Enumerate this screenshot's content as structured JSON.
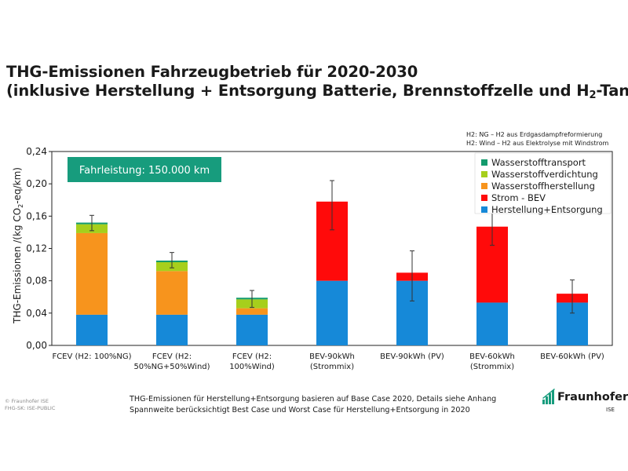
{
  "title": {
    "line1": "THG-Emissionen Fahrzeugbetrieb für 2020-2030",
    "line2_pre": "(inklusive Herstellung + Entsorgung Batterie, Brennstoffzelle und H",
    "line2_sub": "2",
    "line2_post": "-Tank)"
  },
  "h2_notes": [
    "H2: NG – H2 aus Erdgasdampfreformierung",
    "H2: Wind – H2 aus Elektrolyse mit Windstrom"
  ],
  "badge": "Fahrleistung: 150.000 km",
  "footer": {
    "copyright": "© Fraunhofer ISE",
    "classification": "FHG-SK: ISE-PUBLIC",
    "note1": "THG-Emissionen für Herstellung+Entsorgung basieren auf Base Case 2020, Details siehe Anhang",
    "note2": "Spannweite berücksichtigt Best Case und Worst Case für Herstellung+Entsorgung in 2020",
    "logo_name": "Fraunhofer",
    "logo_sub": "ISE"
  },
  "colors": {
    "brand": "#179c7d",
    "herstellung": "#1689d8",
    "strom": "#ff0a0a",
    "h2_herstellung": "#f7941d",
    "h2_verdichtung": "#a6cf1c",
    "h2_transport": "#139b6d"
  },
  "chart_data": {
    "type": "bar",
    "stacked": true,
    "title": "",
    "ylabel_parts": [
      "THG-Emissionen /(kg CO",
      "2",
      "-eq/km)"
    ],
    "ylim": [
      0,
      0.24
    ],
    "yticks": [
      "0,00",
      "0,04",
      "0,08",
      "0,12",
      "0,16",
      "0,20",
      "0,24"
    ],
    "grid": false,
    "legend_position": "top-right",
    "categories": [
      [
        "FCEV (H2: 100%NG)"
      ],
      [
        "FCEV (H2:",
        "50%NG+50%Wind)"
      ],
      [
        "FCEV (H2:",
        "100%Wind)"
      ],
      [
        "BEV-90kWh",
        "(Strommix)"
      ],
      [
        "BEV-90kWh (PV)"
      ],
      [
        "BEV-60kWh",
        "(Strommix)"
      ],
      [
        "BEV-60kWh (PV)"
      ]
    ],
    "series": [
      {
        "name": "Herstellung+Entsorgung",
        "color_key": "herstellung",
        "values": [
          0.038,
          0.038,
          0.038,
          0.08,
          0.08,
          0.053,
          0.053
        ]
      },
      {
        "name": "Strom - BEV",
        "color_key": "strom",
        "values": [
          0,
          0,
          0,
          0.098,
          0.01,
          0.094,
          0.011
        ]
      },
      {
        "name": "Wasserstoffherstellung",
        "color_key": "h2_herstellung",
        "values": [
          0.101,
          0.054,
          0.008,
          0,
          0,
          0,
          0
        ]
      },
      {
        "name": "Wasserstoffverdichtung",
        "color_key": "h2_verdichtung",
        "values": [
          0.011,
          0.011,
          0.011,
          0,
          0,
          0,
          0
        ]
      },
      {
        "name": "Wasserstofftransport",
        "color_key": "h2_transport",
        "values": [
          0.002,
          0.002,
          0.002,
          0,
          0,
          0,
          0
        ]
      }
    ],
    "error_bars": [
      [
        0.142,
        0.161
      ],
      [
        0.096,
        0.115
      ],
      [
        0.047,
        0.068
      ],
      [
        0.143,
        0.204
      ],
      [
        0.055,
        0.117
      ],
      [
        0.124,
        0.167
      ],
      [
        0.04,
        0.081
      ]
    ],
    "legend_order": [
      "Wasserstofftransport",
      "Wasserstoffverdichtung",
      "Wasserstoffherstellung",
      "Strom - BEV",
      "Herstellung+Entsorgung"
    ]
  }
}
